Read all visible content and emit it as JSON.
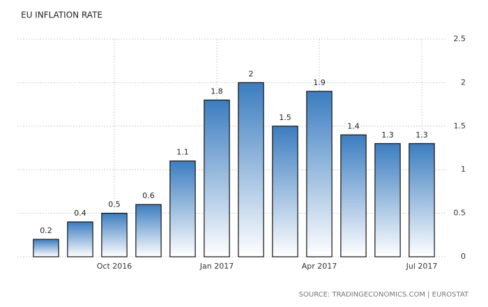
{
  "chart_data": {
    "type": "bar",
    "title": "EU INFLATION RATE",
    "categories": [
      null,
      null,
      "Oct 2016",
      null,
      null,
      "Jan 2017",
      null,
      null,
      "Apr 2017",
      null,
      null,
      "Jul 2017"
    ],
    "values": [
      0.2,
      0.4,
      0.5,
      0.6,
      1.1,
      1.8,
      2,
      1.5,
      1.9,
      1.4,
      1.3,
      1.3
    ],
    "color": "#3b7dc0",
    "ylim": [
      0,
      2.5
    ],
    "yticks": [
      0,
      0.5,
      1,
      1.5,
      2,
      2.5
    ],
    "grid": true,
    "source": "SOURCE: TRADINGECONOMICS.COM | EUROSTAT"
  }
}
